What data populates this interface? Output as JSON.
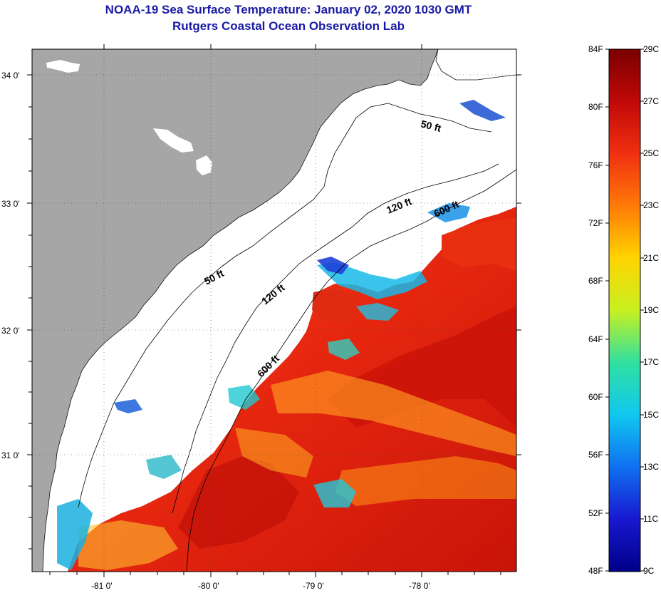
{
  "header": {
    "title": "NOAA-19 Sea Surface Temperature:  January 02, 2020 1030 GMT",
    "subtitle": "Rutgers Coastal Ocean Observation Lab"
  },
  "map": {
    "lat_labels": [
      "34 0'",
      "33 0'",
      "32 0'",
      "31 0'"
    ],
    "lon_labels": [
      "-81 0'",
      "-80 0'",
      "-79 0'",
      "-78 0'"
    ],
    "contour_labels": [
      "50 ft",
      "50 ft",
      "120 ft",
      "120 ft",
      "600 ft",
      "600 ft"
    ],
    "colors": {
      "land": "#a6a6a6",
      "no_data": "#ffffff",
      "water_warm": "#e82a10",
      "water_hot": "#c41208",
      "water_mid": "#ff7a10",
      "water_cool": "#18b0e0",
      "water_cold": "#1a40d0"
    }
  },
  "colorbar": {
    "fahrenheit_labels": [
      "84F",
      "80F",
      "76F",
      "72F",
      "68F",
      "64F",
      "60F",
      "56F",
      "52F",
      "48F"
    ],
    "celsius_labels": [
      "29C",
      "27C",
      "25C",
      "23C",
      "21C",
      "19C",
      "17C",
      "15C",
      "13C",
      "11C",
      "9C"
    ]
  }
}
